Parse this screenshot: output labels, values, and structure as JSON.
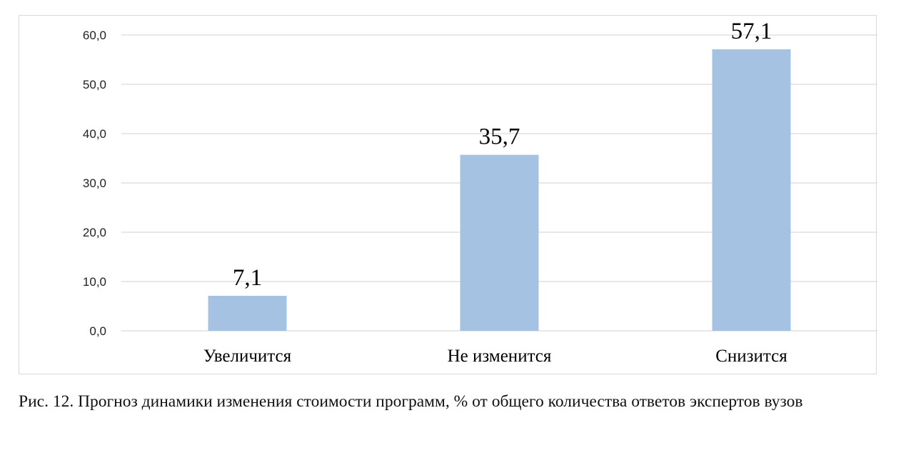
{
  "chart_data": {
    "type": "bar",
    "categories": [
      "Увеличится",
      "Не изменится",
      "Снизится"
    ],
    "values": [
      7.1,
      35.7,
      57.1
    ],
    "value_labels": [
      "7,1",
      "35,7",
      "57,1"
    ],
    "ylim": [
      0,
      60
    ],
    "yticks": [
      0,
      10,
      20,
      30,
      40,
      50,
      60
    ],
    "ytick_labels": [
      "0,0",
      "10,0",
      "20,0",
      "30,0",
      "40,0",
      "50,0",
      "60,0"
    ],
    "grid": true,
    "bar_color": "#a6c2e2",
    "grid_color": "#d9d9d9"
  },
  "caption": "Рис. 12. Прогноз динамики изменения стоимости программ, % от общего количества ответов экспертов вузов"
}
